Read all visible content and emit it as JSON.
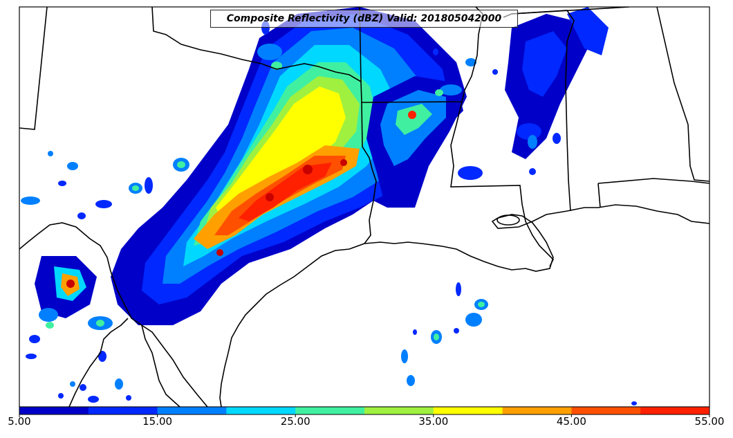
{
  "title": "Composite Reflectivity (dBZ) Valid: 201805042000",
  "colorbar": {
    "colors": [
      "#0000c8",
      "#0028ff",
      "#0080ff",
      "#00d8ff",
      "#40f0a0",
      "#a0f040",
      "#ffff00",
      "#ffa000",
      "#ff5000",
      "#ff2000",
      "#c80000"
    ],
    "tick_labels": [
      "5.00",
      "15.00",
      "25.00",
      "35.00",
      "45.00",
      "55.00"
    ],
    "min": 5,
    "max": 55,
    "step": 5
  },
  "legend_colors": {
    "background": "#ffffff",
    "boundaries": "#000000"
  }
}
